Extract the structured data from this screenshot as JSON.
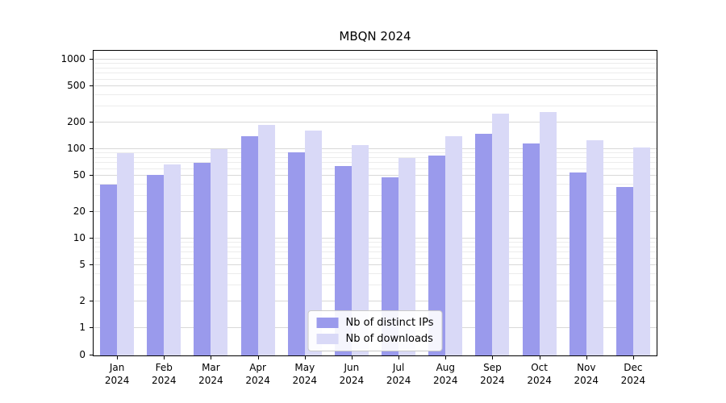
{
  "chart_data": {
    "type": "bar",
    "title": "MBQN 2024",
    "yscale": "symlog",
    "grid": true,
    "ylim": [
      0,
      1280
    ],
    "yticks": [
      0,
      1,
      2,
      5,
      10,
      20,
      50,
      100,
      200,
      500,
      1000
    ],
    "legend_position": "lower center",
    "categories": [
      {
        "month": "Jan",
        "year": "2024"
      },
      {
        "month": "Feb",
        "year": "2024"
      },
      {
        "month": "Mar",
        "year": "2024"
      },
      {
        "month": "Apr",
        "year": "2024"
      },
      {
        "month": "May",
        "year": "2024"
      },
      {
        "month": "Jun",
        "year": "2024"
      },
      {
        "month": "Jul",
        "year": "2024"
      },
      {
        "month": "Aug",
        "year": "2024"
      },
      {
        "month": "Sep",
        "year": "2024"
      },
      {
        "month": "Oct",
        "year": "2024"
      },
      {
        "month": "Nov",
        "year": "2024"
      },
      {
        "month": "Dec",
        "year": "2024"
      }
    ],
    "series": [
      {
        "name": "Nb of distinct IPs",
        "color": "#9a9aec",
        "values": [
          40,
          52,
          70,
          140,
          93,
          65,
          48,
          85,
          150,
          115,
          55,
          38
        ]
      },
      {
        "name": "Nb of downloads",
        "color": "#d9d9f7",
        "values": [
          90,
          68,
          100,
          185,
          160,
          110,
          80,
          140,
          250,
          260,
          125,
          105
        ]
      }
    ]
  }
}
